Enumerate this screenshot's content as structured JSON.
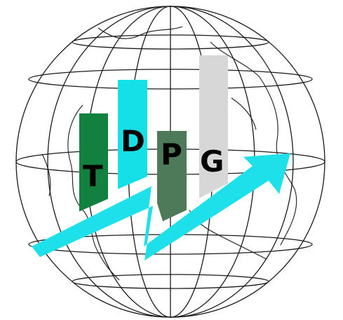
{
  "logo": {
    "letters": {
      "t": "T",
      "d": "D",
      "p": "P",
      "g": "G"
    },
    "colors": {
      "bar_t": "#12803f",
      "bar_d": "#16e0e7",
      "bar_p": "#4f7a5a",
      "bar_g": "#d7d7d7",
      "arrow": "#1ee0ea",
      "globe_lines": "#1b1b1b",
      "background": "#ffffff"
    },
    "icon": "globe-with-rising-arrow-and-bars"
  }
}
